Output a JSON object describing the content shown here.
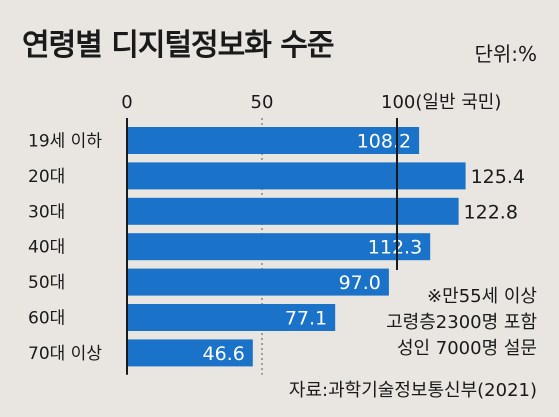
{
  "title": "연령별 디지털정보화 수준",
  "unit": "단위:%",
  "reference_label": "100(일반 국민)",
  "note": [
    "※만55세 이상",
    "고령층2300명 포함",
    "성인 7000명 설문"
  ],
  "source": "자료:과학기술정보통신부(2021)",
  "colors": {
    "bar": "#1a73c9",
    "background": "#e9e6e1",
    "inside_label": "#ffffff",
    "outside_label": "#1a1a1a"
  },
  "chart_data": {
    "type": "bar",
    "orientation": "horizontal",
    "categories": [
      "19세 이하",
      "20대",
      "30대",
      "40대",
      "50대",
      "60대",
      "70대 이상"
    ],
    "values": [
      108.2,
      125.4,
      122.8,
      112.3,
      97.0,
      77.1,
      46.6
    ],
    "value_labels": [
      "108.2",
      "125.4",
      "122.8",
      "112.3",
      "97.0",
      "77.1",
      "46.6"
    ],
    "xticks": [
      0,
      50,
      100
    ],
    "xtick_labels": [
      "0",
      "50",
      ""
    ],
    "reference_value": 100,
    "xlim": [
      0,
      135
    ],
    "grid": false,
    "legend": "none"
  }
}
